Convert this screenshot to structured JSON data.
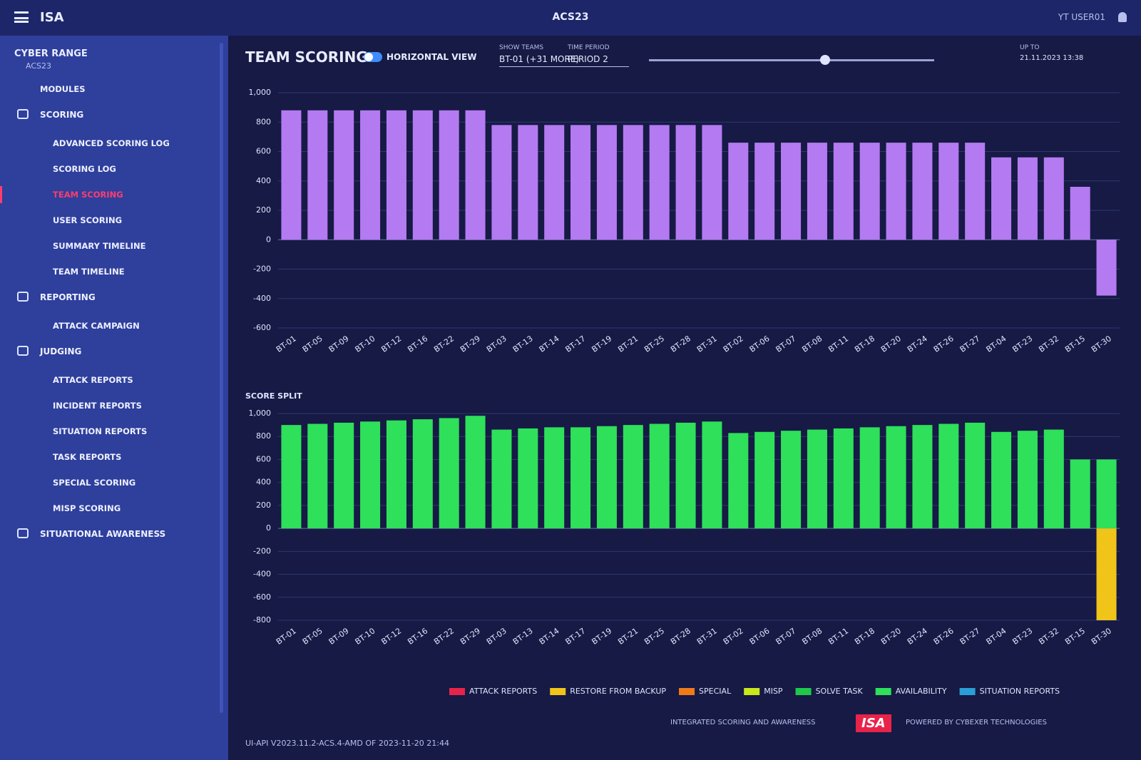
{
  "header": {
    "app": "ISA",
    "exercise": "ACS23",
    "user": "YT USER01"
  },
  "sidebar": {
    "title": "CYBER RANGE",
    "subtitle": "ACS23",
    "items": [
      {
        "label": "MODULES",
        "section": false,
        "active": false
      },
      {
        "label": "SCORING",
        "section": true,
        "active": false
      },
      {
        "label": "ADVANCED SCORING LOG",
        "section": false,
        "active": false
      },
      {
        "label": "SCORING LOG",
        "section": false,
        "active": false
      },
      {
        "label": "TEAM SCORING",
        "section": false,
        "active": true
      },
      {
        "label": "USER SCORING",
        "section": false,
        "active": false
      },
      {
        "label": "SUMMARY TIMELINE",
        "section": false,
        "active": false
      },
      {
        "label": "TEAM TIMELINE",
        "section": false,
        "active": false
      },
      {
        "label": "REPORTING",
        "section": true,
        "active": false
      },
      {
        "label": "ATTACK CAMPAIGN",
        "section": false,
        "active": false
      },
      {
        "label": "JUDGING",
        "section": true,
        "active": false
      },
      {
        "label": "ATTACK REPORTS",
        "section": false,
        "active": false
      },
      {
        "label": "INCIDENT REPORTS",
        "section": false,
        "active": false
      },
      {
        "label": "SITUATION REPORTS",
        "section": false,
        "active": false
      },
      {
        "label": "TASK REPORTS",
        "section": false,
        "active": false
      },
      {
        "label": "SPECIAL SCORING",
        "section": false,
        "active": false
      },
      {
        "label": "MISP SCORING",
        "section": false,
        "active": false
      },
      {
        "label": "SITUATIONAL AWARENESS",
        "section": true,
        "active": false
      }
    ]
  },
  "toolbar": {
    "title": "TEAM SCORING",
    "toggle": "HORIZONTAL VIEW",
    "show_teams_label": "SHOW TEAMS",
    "show_teams_value": "BT-01 (+31 MORE)",
    "time_period_label": "TIME PERIOD",
    "time_period_value": "PERIOD 2",
    "up_to_label": "UP TO",
    "up_to_value": "21.11.2023 13:38"
  },
  "chart_data": [
    {
      "type": "bar",
      "categories": [
        "BT-01",
        "BT-05",
        "BT-09",
        "BT-10",
        "BT-12",
        "BT-16",
        "BT-22",
        "BT-29",
        "BT-03",
        "BT-13",
        "BT-14",
        "BT-17",
        "BT-19",
        "BT-21",
        "BT-25",
        "BT-28",
        "BT-31",
        "BT-02",
        "BT-06",
        "BT-07",
        "BT-08",
        "BT-11",
        "BT-18",
        "BT-20",
        "BT-24",
        "BT-26",
        "BT-27",
        "BT-04",
        "BT-23",
        "BT-32",
        "BT-15",
        "BT-30"
      ],
      "values": [
        880,
        880,
        880,
        880,
        880,
        880,
        880,
        880,
        780,
        780,
        780,
        780,
        780,
        780,
        780,
        780,
        780,
        660,
        660,
        660,
        660,
        660,
        660,
        660,
        660,
        660,
        660,
        560,
        560,
        560,
        360,
        -380
      ],
      "color": "#b47af2",
      "ylim": [
        -600,
        1000
      ],
      "yticks": [
        -600,
        -400,
        -200,
        0,
        200,
        400,
        600,
        800,
        {
          "value": 1000,
          "label": "1,000"
        }
      ],
      "grid": true
    },
    {
      "type": "stacked_bar",
      "title": "SCORE SPLIT",
      "categories": [
        "BT-01",
        "BT-05",
        "BT-09",
        "BT-10",
        "BT-12",
        "BT-16",
        "BT-22",
        "BT-29",
        "BT-03",
        "BT-13",
        "BT-14",
        "BT-17",
        "BT-19",
        "BT-21",
        "BT-25",
        "BT-28",
        "BT-31",
        "BT-02",
        "BT-06",
        "BT-07",
        "BT-08",
        "BT-11",
        "BT-18",
        "BT-20",
        "BT-24",
        "BT-26",
        "BT-27",
        "BT-04",
        "BT-23",
        "BT-32",
        "BT-15",
        "BT-30"
      ],
      "series": [
        {
          "name": "ATTACK REPORTS",
          "color": "#e8234a",
          "values": [
            0,
            0,
            0,
            0,
            0,
            0,
            0,
            0,
            0,
            0,
            0,
            0,
            0,
            0,
            0,
            0,
            0,
            0,
            0,
            0,
            0,
            0,
            0,
            0,
            0,
            0,
            0,
            0,
            0,
            0,
            0,
            0
          ]
        },
        {
          "name": "RESTORE FROM BACKUP",
          "color": "#f0c419",
          "values": [
            0,
            0,
            0,
            0,
            0,
            0,
            0,
            0,
            0,
            0,
            0,
            0,
            0,
            0,
            0,
            0,
            0,
            0,
            0,
            0,
            0,
            0,
            0,
            0,
            0,
            0,
            0,
            0,
            0,
            0,
            0,
            -800
          ]
        },
        {
          "name": "SPECIAL",
          "color": "#f07a1a",
          "values": [
            0,
            0,
            0,
            0,
            0,
            0,
            0,
            0,
            0,
            0,
            0,
            0,
            0,
            0,
            0,
            0,
            0,
            0,
            0,
            0,
            0,
            0,
            0,
            0,
            0,
            0,
            0,
            0,
            0,
            0,
            0,
            0
          ]
        },
        {
          "name": "MISP",
          "color": "#c8e81a",
          "values": [
            0,
            0,
            0,
            0,
            0,
            0,
            0,
            0,
            0,
            0,
            0,
            0,
            0,
            0,
            0,
            0,
            0,
            0,
            0,
            0,
            0,
            0,
            0,
            0,
            0,
            0,
            0,
            0,
            0,
            0,
            0,
            0
          ]
        },
        {
          "name": "SOLVE TASK",
          "color": "#1fc84a",
          "values": [
            0,
            0,
            0,
            0,
            0,
            0,
            0,
            0,
            0,
            0,
            0,
            0,
            0,
            0,
            0,
            0,
            0,
            0,
            0,
            0,
            0,
            0,
            0,
            0,
            0,
            0,
            0,
            0,
            0,
            0,
            0,
            0
          ]
        },
        {
          "name": "AVAILABILITY",
          "color": "#2ee05a",
          "values": [
            900,
            910,
            920,
            930,
            940,
            950,
            960,
            980,
            860,
            870,
            880,
            880,
            890,
            900,
            910,
            920,
            930,
            830,
            840,
            850,
            860,
            870,
            880,
            890,
            900,
            910,
            920,
            840,
            850,
            860,
            600,
            600
          ]
        },
        {
          "name": "SITUATION REPORTS",
          "color": "#2a9fd6",
          "values": [
            0,
            0,
            0,
            0,
            0,
            0,
            0,
            0,
            0,
            0,
            0,
            0,
            0,
            0,
            0,
            0,
            0,
            0,
            0,
            0,
            0,
            0,
            0,
            0,
            0,
            0,
            0,
            0,
            0,
            0,
            0,
            0
          ]
        }
      ],
      "ylim": [
        -800,
        1000
      ],
      "yticks": [
        -800,
        -600,
        -400,
        -200,
        0,
        200,
        400,
        600,
        800,
        {
          "value": 1000,
          "label": "1,000"
        }
      ],
      "grid": true
    }
  ],
  "footer": {
    "version": "UI-API V2023.11.2-ACS.4-AMD OF 2023-11-20 21:44",
    "tagline": "INTEGRATED SCORING AND AWARENESS",
    "logo": "ISA",
    "powered": "POWERED BY CYBEXER TECHNOLOGIES"
  }
}
